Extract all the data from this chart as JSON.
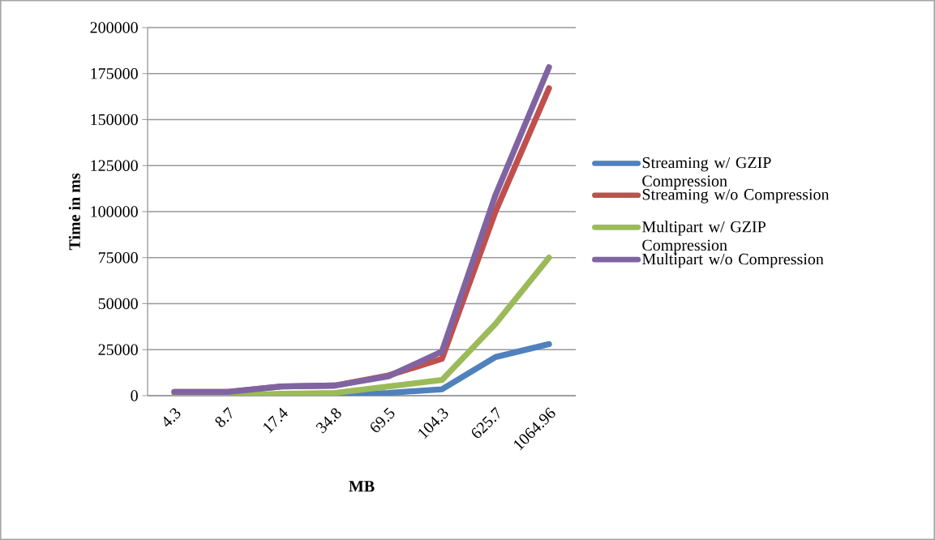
{
  "chart_data": {
    "type": "line",
    "xlabel": "MB",
    "ylabel": "Time in ms",
    "categories": [
      "4.3",
      "8.7",
      "17.4",
      "34.8",
      "69.5",
      "104.3",
      "625.7",
      "1064.96"
    ],
    "series": [
      {
        "name": "Streaming w/ GZIP Compression",
        "color": "#4f81bd",
        "values": [
          null,
          null,
          200,
          300,
          1500,
          3500,
          21000,
          28000
        ]
      },
      {
        "name": "Streaming w/o Compression",
        "color": "#c0504d",
        "values": [
          2000,
          2000,
          5000,
          5500,
          11000,
          20000,
          100000,
          167000
        ]
      },
      {
        "name": "Multipart w/ GZIP Compression",
        "color": "#9bbb59",
        "values": [
          0,
          0,
          1000,
          1500,
          5000,
          8500,
          39000,
          75000
        ]
      },
      {
        "name": "Multipart w/o Compression",
        "color": "#8064a2",
        "values": [
          2000,
          2000,
          5000,
          5500,
          10500,
          24000,
          109000,
          178500
        ]
      }
    ],
    "ylim": [
      0,
      200000
    ],
    "yticks": [
      0,
      25000,
      50000,
      75000,
      100000,
      125000,
      150000,
      175000,
      200000
    ],
    "grid": "y",
    "legend": "right",
    "marker": "none",
    "line_style": "solid"
  }
}
